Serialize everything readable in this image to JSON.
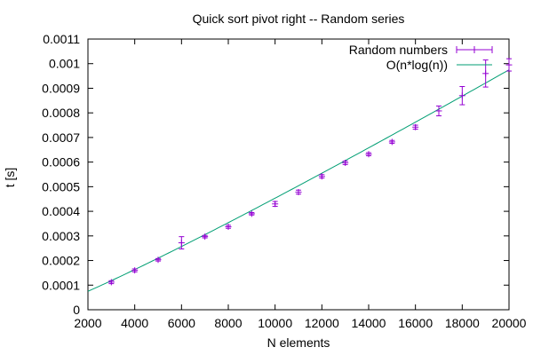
{
  "chart_data": {
    "type": "scatter",
    "title": "Quick sort pivot right -- Random series",
    "xlabel": "N elements",
    "ylabel": "t [s]",
    "xlim": [
      2000,
      20000
    ],
    "ylim": [
      0,
      0.0011
    ],
    "xticks": [
      2000,
      4000,
      6000,
      8000,
      10000,
      12000,
      14000,
      16000,
      18000,
      20000
    ],
    "xtick_labels": [
      "2000",
      "4000",
      "6000",
      "8000",
      "10000",
      "12000",
      "14000",
      "16000",
      "18000",
      "20000"
    ],
    "yticks": [
      0,
      0.0001,
      0.0002,
      0.0003,
      0.0004,
      0.0005,
      0.0006,
      0.0007,
      0.0008,
      0.0009,
      0.001,
      0.0011
    ],
    "ytick_labels": [
      "0",
      "0.0001",
      "0.0002",
      "0.0003",
      "0.0004",
      "0.0005",
      "0.0006",
      "0.0007",
      "0.0008",
      "0.0009",
      "0.001",
      "0.0011"
    ],
    "grid": false,
    "legend_position": "top-right",
    "series": [
      {
        "name": "Random numbers",
        "kind": "errorbars",
        "color": "#9400d3",
        "x": [
          3000,
          4000,
          5000,
          6000,
          7000,
          8000,
          9000,
          10000,
          11000,
          12000,
          13000,
          14000,
          15000,
          16000,
          17000,
          18000,
          19000,
          20000
        ],
        "y": [
          0.000112,
          0.00016,
          0.000203,
          0.000272,
          0.000297,
          0.000337,
          0.00039,
          0.00043,
          0.000478,
          0.000542,
          0.000597,
          0.000632,
          0.000682,
          0.000742,
          0.000808,
          0.00087,
          0.00096,
          0.000995
        ],
        "yerr": [
          6e-06,
          6e-06,
          5e-06,
          2.5e-05,
          5e-06,
          6e-06,
          5e-06,
          1e-05,
          8e-06,
          7e-06,
          7e-06,
          6e-06,
          6e-06,
          8e-06,
          2e-05,
          3.7e-05,
          5.5e-05,
          2.5e-05
        ]
      },
      {
        "name": "O(n*log(n))",
        "kind": "line",
        "color": "#009e73",
        "formula": "n*log(n)",
        "x_start": 2000,
        "x_end": 20000,
        "y_start": 6.7e-05,
        "y_end": 0.000975
      }
    ]
  }
}
